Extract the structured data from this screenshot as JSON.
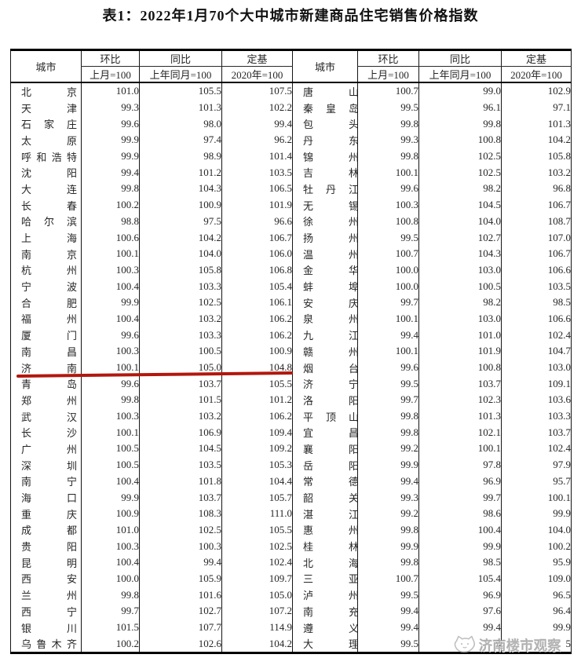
{
  "title": "表1：2022年1月70个大中城市新建商品住宅销售价格指数",
  "table": {
    "header": {
      "city": "城市",
      "mom_label": "环比",
      "mom_base": "上月=100",
      "yoy_label": "同比",
      "yoy_base": "上年同月=100",
      "fixed_label": "定基",
      "fixed_base": "2020年=100"
    },
    "left_rows": [
      [
        "北京",
        "101.0",
        "105.5",
        "107.5"
      ],
      [
        "天津",
        "99.3",
        "101.3",
        "102.2"
      ],
      [
        "石家庄",
        "99.6",
        "98.0",
        "99.4"
      ],
      [
        "太原",
        "99.9",
        "97.4",
        "96.2"
      ],
      [
        "呼和浩特",
        "99.9",
        "98.9",
        "101.4"
      ],
      [
        "沈阳",
        "99.4",
        "101.2",
        "103.5"
      ],
      [
        "大连",
        "99.8",
        "104.3",
        "106.5"
      ],
      [
        "长春",
        "100.2",
        "100.9",
        "101.9"
      ],
      [
        "哈尔滨",
        "98.8",
        "97.5",
        "96.6"
      ],
      [
        "上海",
        "100.6",
        "104.2",
        "106.7"
      ],
      [
        "南京",
        "100.1",
        "104.0",
        "106.0"
      ],
      [
        "杭州",
        "100.3",
        "105.8",
        "106.8"
      ],
      [
        "宁波",
        "100.4",
        "103.3",
        "105.4"
      ],
      [
        "合肥",
        "99.9",
        "102.5",
        "106.1"
      ],
      [
        "福州",
        "100.4",
        "103.2",
        "106.2"
      ],
      [
        "厦门",
        "99.6",
        "103.3",
        "106.2"
      ],
      [
        "南昌",
        "100.3",
        "100.5",
        "100.9"
      ],
      [
        "济南",
        "100.1",
        "105.0",
        "104.8"
      ],
      [
        "青岛",
        "99.6",
        "103.7",
        "105.5"
      ],
      [
        "郑州",
        "99.8",
        "101.5",
        "101.2"
      ],
      [
        "武汉",
        "100.3",
        "103.2",
        "106.2"
      ],
      [
        "长沙",
        "100.1",
        "106.9",
        "109.4"
      ],
      [
        "广州",
        "100.5",
        "104.5",
        "109.2"
      ],
      [
        "深圳",
        "100.5",
        "103.5",
        "105.3"
      ],
      [
        "南宁",
        "100.4",
        "101.8",
        "104.4"
      ],
      [
        "海口",
        "99.9",
        "103.7",
        "105.7"
      ],
      [
        "重庆",
        "100.9",
        "108.3",
        "111.0"
      ],
      [
        "成都",
        "101.0",
        "102.5",
        "105.5"
      ],
      [
        "贵阳",
        "100.3",
        "100.3",
        "102.5"
      ],
      [
        "昆明",
        "100.4",
        "99.4",
        "102.4"
      ],
      [
        "西安",
        "100.0",
        "105.9",
        "109.7"
      ],
      [
        "兰州",
        "99.8",
        "101.6",
        "105.0"
      ],
      [
        "西宁",
        "99.7",
        "102.7",
        "107.2"
      ],
      [
        "银川",
        "101.5",
        "107.7",
        "114.9"
      ],
      [
        "乌鲁木齐",
        "100.2",
        "102.6",
        "104.2"
      ]
    ],
    "right_rows": [
      [
        "唐山",
        "100.7",
        "99.0",
        "102.9"
      ],
      [
        "秦皇岛",
        "99.5",
        "96.1",
        "97.1"
      ],
      [
        "包头",
        "99.8",
        "99.8",
        "101.3"
      ],
      [
        "丹东",
        "99.3",
        "100.8",
        "104.2"
      ],
      [
        "锦州",
        "99.8",
        "102.5",
        "105.8"
      ],
      [
        "吉林",
        "100.1",
        "102.5",
        "103.2"
      ],
      [
        "牡丹江",
        "99.6",
        "98.2",
        "96.8"
      ],
      [
        "无锡",
        "100.3",
        "104.5",
        "106.7"
      ],
      [
        "徐州",
        "100.8",
        "104.0",
        "108.7"
      ],
      [
        "扬州",
        "99.5",
        "102.7",
        "107.0"
      ],
      [
        "温州",
        "100.7",
        "104.3",
        "106.7"
      ],
      [
        "金华",
        "100.0",
        "103.0",
        "106.6"
      ],
      [
        "蚌埠",
        "100.0",
        "100.5",
        "103.5"
      ],
      [
        "安庆",
        "99.7",
        "98.2",
        "98.5"
      ],
      [
        "泉州",
        "100.1",
        "103.0",
        "106.6"
      ],
      [
        "九江",
        "99.4",
        "101.0",
        "102.4"
      ],
      [
        "赣州",
        "100.1",
        "101.9",
        "104.7"
      ],
      [
        "烟台",
        "99.6",
        "100.8",
        "103.0"
      ],
      [
        "济宁",
        "99.5",
        "103.7",
        "109.1"
      ],
      [
        "洛阳",
        "99.7",
        "102.3",
        "103.6"
      ],
      [
        "平顶山",
        "99.8",
        "101.3",
        "103.3"
      ],
      [
        "宜昌",
        "99.8",
        "102.1",
        "103.7"
      ],
      [
        "襄阳",
        "99.2",
        "100.1",
        "102.4"
      ],
      [
        "岳阳",
        "99.9",
        "97.8",
        "97.9"
      ],
      [
        "常德",
        "99.4",
        "96.9",
        "95.7"
      ],
      [
        "韶关",
        "99.3",
        "99.7",
        "100.1"
      ],
      [
        "湛江",
        "99.2",
        "98.6",
        "99.9"
      ],
      [
        "惠州",
        "99.8",
        "100.4",
        "104.0"
      ],
      [
        "桂林",
        "99.9",
        "99.9",
        "100.2"
      ],
      [
        "北海",
        "99.8",
        "98.5",
        "95.9"
      ],
      [
        "三亚",
        "100.7",
        "105.4",
        "109.0"
      ],
      [
        "泸州",
        "99.5",
        "96.9",
        "96.5"
      ],
      [
        "南充",
        "99.4",
        "97.6",
        "96.4"
      ],
      [
        "遵义",
        "99.4",
        "99.4",
        "99.9"
      ],
      [
        "大理",
        "99.5",
        "9",
        "5"
      ]
    ]
  },
  "highlight": {
    "city": "济南",
    "underline_color": "#b2170e"
  },
  "watermark": {
    "text": "济南楼市观察",
    "color": "#9e9e9e"
  }
}
